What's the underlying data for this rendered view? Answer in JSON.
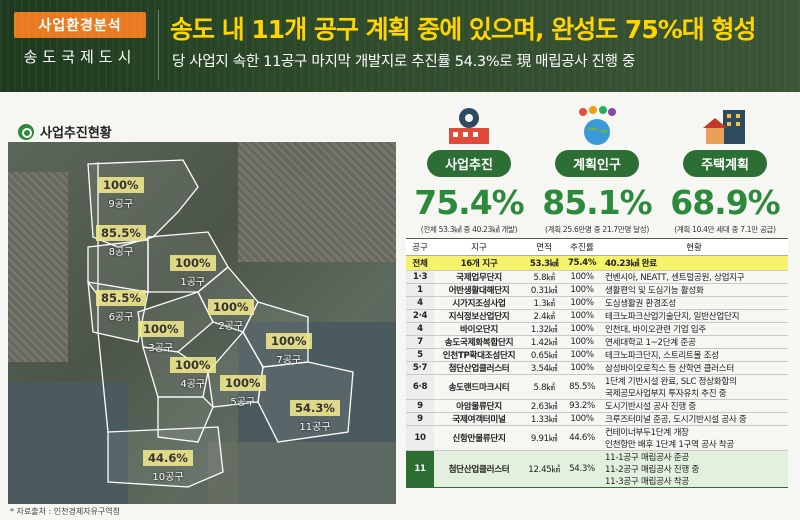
{
  "header": {
    "badge": "사업환경분석",
    "city": "송도국제도시",
    "title": "송도 내 11개 공구 계획 중에 있으며, 완성도 75%대 형성",
    "subtitle": "당 사업지 속한 11공구 마지막 개발지로 추진률 54.3%로 現 매립공사 진행 중"
  },
  "section_title": "사업추진현황",
  "source": "* 자료출처 : 인천경제자유구역청",
  "map_zones": [
    {
      "pct": "100%",
      "name": "9공구"
    },
    {
      "pct": "85.5%",
      "name": "8공구"
    },
    {
      "pct": "100%",
      "name": "1공구"
    },
    {
      "pct": "85.5%",
      "name": "6공구"
    },
    {
      "pct": "100%",
      "name": "2공구"
    },
    {
      "pct": "100%",
      "name": "3공구"
    },
    {
      "pct": "100%",
      "name": "7공구"
    },
    {
      "pct": "100%",
      "name": "4공구"
    },
    {
      "pct": "100%",
      "name": "5공구"
    },
    {
      "pct": "54.3%",
      "name": "11공구"
    },
    {
      "pct": "44.6%",
      "name": "10공구"
    }
  ],
  "stats": [
    {
      "label": "사업추진",
      "value": "75.4%",
      "note": "(전체 53.3㎢ 중 40.23㎢ 개발)",
      "icon": "factory-gear-icon"
    },
    {
      "label": "계획인구",
      "value": "85.1%",
      "note": "(계획 25.6만명 중 21.7만명 달성)",
      "icon": "population-globe-icon"
    },
    {
      "label": "주택계획",
      "value": "68.9%",
      "note": "(계획 10.4만 세대 중 7.1만 공급)",
      "icon": "house-building-icon"
    }
  ],
  "colors": {
    "accent_orange": "#e87b22",
    "title_yellow": "#ffd400",
    "green": "#2d8a3c",
    "dark_green": "#2d6e35"
  },
  "table": {
    "headers": [
      "공구",
      "지구",
      "면적",
      "추진률",
      "현황"
    ],
    "total": {
      "code": "전체",
      "name": "16개 지구",
      "area": "53.3㎢",
      "rate": "75.4%",
      "status": "40.23㎢ 완료"
    },
    "rows": [
      {
        "code": "1·3",
        "name": "국제업무단지",
        "area": "5.8㎢",
        "rate": "100%",
        "status": "컨벤시아, NEATT, 센트럴공원, 상업지구"
      },
      {
        "code": "1",
        "name": "어반생활대해단지",
        "area": "0.31㎢",
        "rate": "100%",
        "status": "생활편익 및 도심기능 활성화"
      },
      {
        "code": "4",
        "name": "시가지조성사업",
        "area": "1.3㎢",
        "rate": "100%",
        "status": "도심생활권 환경조성"
      },
      {
        "code": "2·4",
        "name": "지식정보산업단지",
        "area": "2.4㎢",
        "rate": "100%",
        "status": "테크노파크산업기술단지, 일반산업단지"
      },
      {
        "code": "4",
        "name": "바이오단지",
        "area": "1.32㎢",
        "rate": "100%",
        "status": "인천대, 바이오관련 기업 입주"
      },
      {
        "code": "7",
        "name": "송도국제화복합단지",
        "area": "1.42㎢",
        "rate": "100%",
        "status": "연세대학교 1~2단계 준공"
      },
      {
        "code": "5",
        "name": "인천TP확대조성단지",
        "area": "0.65㎢",
        "rate": "100%",
        "status": "테크노파크단지, 스트리트몰 조성"
      },
      {
        "code": "5·7",
        "name": "첨단산업클러스터",
        "area": "3.54㎢",
        "rate": "100%",
        "status": "삼성바이오로직스 등 산학연 클러스터"
      },
      {
        "code": "6·8",
        "name": "송도랜드마크시티",
        "area": "5.8㎢",
        "rate": "85.5%",
        "status": "1단계 기반시설 완료, SLC 정상화합의",
        "status2": "국제공모사업부지 투자유치 추진 중"
      },
      {
        "code": "9",
        "name": "아암물류단지",
        "area": "2.63㎢",
        "rate": "93.2%",
        "status": "도시기반시설 공사 진행 중"
      },
      {
        "code": "9",
        "name": "국제여객터미널",
        "area": "1.33㎢",
        "rate": "100%",
        "status": "크루즈터미널 준공, 도시기반시설 공사 중"
      },
      {
        "code": "10",
        "name": "신항만물류단지",
        "area": "9.91㎢",
        "rate": "44.6%",
        "status": "컨테이너부두1단계 개장",
        "status2": "인천항만 배후 1단계 1구역 공사 착공"
      }
    ],
    "highlight": {
      "code": "11",
      "name": "첨단산업클러스터",
      "area": "12.45㎢",
      "rate": "54.3%",
      "status": "11-1공구 매립공사 준공",
      "status2": "11-2공구 매립공사 진행 중",
      "status3": "11-3공구 매립공사 착공"
    }
  }
}
